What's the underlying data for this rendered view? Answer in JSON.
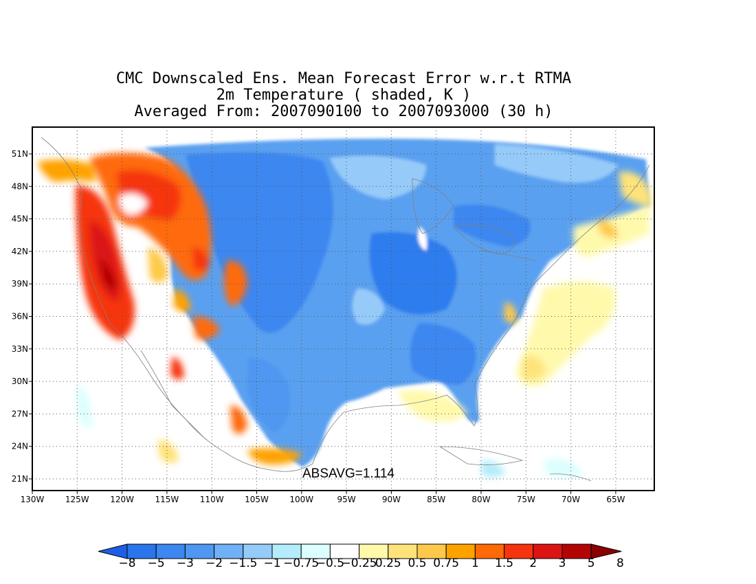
{
  "title": {
    "line1": "CMC Downscaled Ens. Mean Forecast Error w.r.t RTMA",
    "line2": "2m Temperature ( shaded, K )",
    "line3": "Averaged From: 2007090100 to 2007093000 (30 h)"
  },
  "annotation": "ABSAVG=1.114",
  "lat_labels": [
    "51N",
    "48N",
    "45N",
    "42N",
    "39N",
    "36N",
    "33N",
    "30N",
    "27N",
    "24N",
    "21N"
  ],
  "lon_labels": [
    "130W",
    "125W",
    "120W",
    "115W",
    "110W",
    "105W",
    "100W",
    "95W",
    "90W",
    "85W",
    "80W",
    "75W",
    "70W",
    "65W"
  ],
  "grid": "dotted",
  "colorbar": {
    "labels": [
      "-8",
      "-5",
      "-3",
      "-2",
      "-1.5",
      "-1",
      "-0.75",
      "-0.5",
      "-0.25",
      "0.25",
      "0.5",
      "0.75",
      "1",
      "1.5",
      "2",
      "3",
      "5",
      "8"
    ],
    "colors": [
      "#1e5ee6",
      "#2a74ec",
      "#3c87f0",
      "#4f97f0",
      "#6fb0f6",
      "#96caf9",
      "#b4ecfb",
      "#dcfefe",
      "#ffffff",
      "#fff9ab",
      "#fee37a",
      "#fec94a",
      "#fea200",
      "#fe6a08",
      "#f63410",
      "#dc1414",
      "#b30404",
      "#8b0000"
    ]
  },
  "legend_colors": {
    "cold": "#3c87f0",
    "warm": "#f63410",
    "coast": "#808080"
  }
}
